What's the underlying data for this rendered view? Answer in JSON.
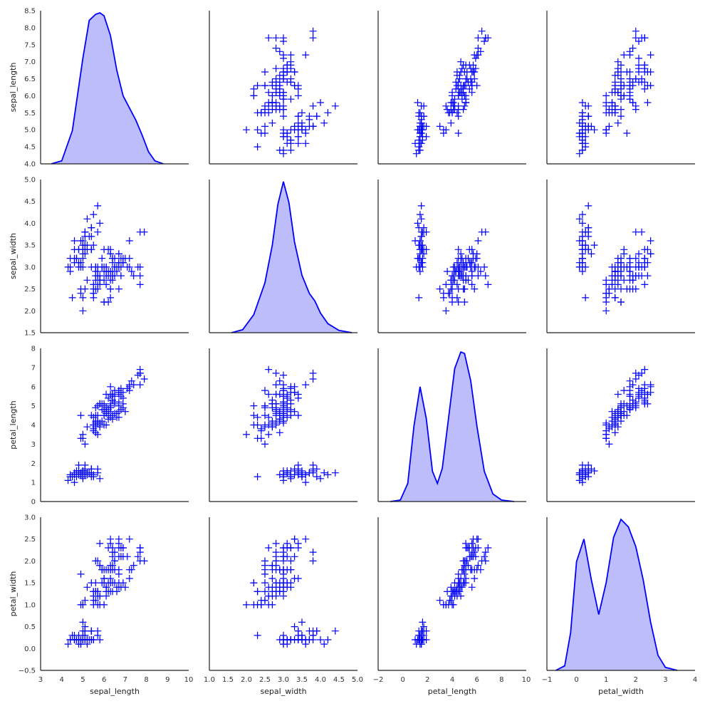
{
  "chart_data": {
    "type": "pairplot",
    "marker": "+",
    "color": "#0000ff",
    "fill_color": "#bdbdfb",
    "grid": false,
    "variables": [
      "sepal_length",
      "sepal_width",
      "petal_length",
      "petal_width"
    ],
    "axes": {
      "sepal_length": {
        "label": "sepal_length",
        "range": [
          4.0,
          8.5
        ],
        "ticks": [
          "4.0",
          "4.5",
          "5.0",
          "5.5",
          "6.0",
          "6.5",
          "7.0",
          "7.5",
          "8.0",
          "8.5"
        ],
        "xrange": [
          3,
          10
        ],
        "xticks": [
          "3",
          "4",
          "5",
          "6",
          "7",
          "8",
          "9",
          "10"
        ]
      },
      "sepal_width": {
        "label": "sepal_width",
        "range": [
          1.5,
          5.0
        ],
        "ticks": [
          "1.5",
          "2.0",
          "2.5",
          "3.0",
          "3.5",
          "4.0",
          "4.5",
          "5.0"
        ],
        "xrange": [
          1.0,
          5.0
        ],
        "xticks": [
          "1.0",
          "1.5",
          "2.0",
          "2.5",
          "3.0",
          "3.5",
          "4.0",
          "4.5",
          "5.0"
        ]
      },
      "petal_length": {
        "label": "petal_length",
        "range": [
          0,
          8
        ],
        "ticks": [
          "0",
          "1",
          "2",
          "3",
          "4",
          "5",
          "6",
          "7",
          "8"
        ],
        "xrange": [
          -2,
          10
        ],
        "xticks": [
          "−2",
          "0",
          "2",
          "4",
          "6",
          "8",
          "10"
        ]
      },
      "petal_width": {
        "label": "petal_width",
        "range": [
          -0.5,
          3.0
        ],
        "ticks": [
          "−0.5",
          "0.0",
          "0.5",
          "1.0",
          "1.5",
          "2.0",
          "2.5",
          "3.0"
        ],
        "xrange": [
          -1,
          4
        ],
        "xticks": [
          "−1",
          "0",
          "1",
          "2",
          "3",
          "4"
        ]
      }
    },
    "kde": {
      "sepal_length": {
        "x": [
          3.5,
          4.0,
          4.5,
          5.0,
          5.3,
          5.6,
          5.8,
          6.0,
          6.3,
          6.6,
          6.9,
          7.2,
          7.5,
          7.8,
          8.1,
          8.4,
          8.8
        ],
        "y": [
          0.0,
          0.02,
          0.22,
          0.7,
          0.95,
          0.99,
          1.0,
          0.98,
          0.85,
          0.62,
          0.45,
          0.37,
          0.29,
          0.19,
          0.08,
          0.02,
          0.0
        ]
      },
      "sepal_width": {
        "x": [
          1.6,
          1.9,
          2.2,
          2.5,
          2.7,
          2.85,
          3.0,
          3.15,
          3.3,
          3.5,
          3.7,
          3.85,
          4.0,
          4.2,
          4.5,
          4.85
        ],
        "y": [
          0.0,
          0.02,
          0.12,
          0.33,
          0.58,
          0.85,
          1.0,
          0.86,
          0.6,
          0.38,
          0.26,
          0.21,
          0.13,
          0.06,
          0.015,
          0.0
        ]
      },
      "petal_length": {
        "x": [
          -1.0,
          -0.2,
          0.4,
          0.9,
          1.4,
          1.9,
          2.4,
          2.8,
          3.2,
          3.7,
          4.2,
          4.7,
          5.0,
          5.5,
          6.0,
          6.6,
          7.3,
          8.0,
          9.0
        ],
        "y": [
          0.0,
          0.01,
          0.12,
          0.5,
          0.76,
          0.55,
          0.2,
          0.12,
          0.22,
          0.55,
          0.88,
          0.99,
          0.98,
          0.8,
          0.5,
          0.2,
          0.05,
          0.01,
          0.0
        ]
      },
      "petal_width": {
        "x": [
          -0.7,
          -0.4,
          -0.2,
          0.0,
          0.25,
          0.5,
          0.75,
          1.0,
          1.25,
          1.5,
          1.75,
          2.0,
          2.25,
          2.5,
          2.75,
          3.0,
          3.4
        ],
        "y": [
          0.0,
          0.03,
          0.25,
          0.72,
          0.87,
          0.6,
          0.37,
          0.58,
          0.88,
          1.0,
          0.95,
          0.82,
          0.6,
          0.32,
          0.1,
          0.02,
          0.0
        ]
      }
    },
    "samples": {
      "sepal_length": [
        5.1,
        4.9,
        4.7,
        4.6,
        5.0,
        5.4,
        4.6,
        5.0,
        4.4,
        4.9,
        5.4,
        4.8,
        4.8,
        4.3,
        5.8,
        5.7,
        5.4,
        5.1,
        5.7,
        5.1,
        5.4,
        5.1,
        4.6,
        5.1,
        4.8,
        5.0,
        5.0,
        5.2,
        5.2,
        4.7,
        4.8,
        5.4,
        5.2,
        5.5,
        4.9,
        5.0,
        5.5,
        4.9,
        4.4,
        5.1,
        5.0,
        4.5,
        4.4,
        5.0,
        5.1,
        4.8,
        5.1,
        4.6,
        5.3,
        5.0,
        7.0,
        6.4,
        6.9,
        5.5,
        6.5,
        5.7,
        6.3,
        4.9,
        6.6,
        5.2,
        5.0,
        5.9,
        6.0,
        6.1,
        5.6,
        6.7,
        5.6,
        5.8,
        6.2,
        5.6,
        5.9,
        6.1,
        6.3,
        6.1,
        6.4,
        6.6,
        6.8,
        6.7,
        6.0,
        5.7,
        5.5,
        5.5,
        5.8,
        6.0,
        5.4,
        6.0,
        6.7,
        6.3,
        5.6,
        5.5,
        5.5,
        6.1,
        5.8,
        5.0,
        5.6,
        5.7,
        5.7,
        6.2,
        5.1,
        5.7,
        6.3,
        5.8,
        7.1,
        6.3,
        6.5,
        7.6,
        4.9,
        7.3,
        6.7,
        7.2,
        6.5,
        6.4,
        6.8,
        5.7,
        5.8,
        6.4,
        6.5,
        7.7,
        7.7,
        6.0,
        6.9,
        5.6,
        7.7,
        6.3,
        6.7,
        7.2,
        6.2,
        6.1,
        6.4,
        7.2,
        7.4,
        7.9,
        6.4,
        6.3,
        6.1,
        7.7,
        6.3,
        6.4,
        6.0,
        6.9,
        6.7,
        6.9,
        5.8,
        6.8,
        6.7,
        6.7,
        6.3,
        6.5,
        6.2,
        5.9
      ],
      "sepal_width": [
        3.5,
        3.0,
        3.2,
        3.1,
        3.6,
        3.9,
        3.4,
        3.4,
        2.9,
        3.1,
        3.7,
        3.4,
        3.0,
        3.0,
        4.0,
        4.4,
        3.9,
        3.5,
        3.8,
        3.8,
        3.4,
        3.7,
        3.6,
        3.3,
        3.4,
        3.0,
        3.4,
        3.5,
        3.4,
        3.2,
        3.1,
        3.4,
        4.1,
        4.2,
        3.1,
        3.2,
        3.5,
        3.6,
        3.0,
        3.4,
        3.5,
        2.3,
        3.2,
        3.5,
        3.8,
        3.0,
        3.8,
        3.2,
        3.7,
        3.3,
        3.2,
        3.2,
        3.1,
        2.3,
        2.8,
        2.8,
        3.3,
        2.4,
        2.9,
        2.7,
        2.0,
        3.0,
        2.2,
        2.9,
        2.9,
        3.1,
        3.0,
        2.7,
        2.2,
        2.5,
        3.2,
        2.8,
        2.5,
        2.8,
        2.9,
        3.0,
        2.8,
        3.0,
        2.9,
        2.6,
        2.4,
        2.4,
        2.7,
        2.7,
        3.0,
        3.4,
        3.1,
        2.3,
        3.0,
        2.5,
        2.6,
        3.0,
        2.6,
        2.3,
        2.7,
        3.0,
        2.9,
        2.9,
        2.5,
        2.8,
        3.3,
        2.7,
        3.0,
        2.9,
        3.0,
        3.0,
        2.5,
        2.9,
        2.5,
        3.6,
        3.2,
        2.7,
        3.0,
        2.5,
        2.8,
        3.2,
        3.0,
        3.8,
        2.6,
        2.2,
        3.2,
        2.8,
        2.8,
        2.7,
        3.3,
        3.2,
        2.8,
        3.0,
        2.8,
        3.0,
        2.8,
        3.8,
        2.8,
        2.8,
        2.6,
        3.0,
        3.4,
        3.1,
        3.0,
        3.1,
        3.1,
        3.1,
        2.7,
        3.2,
        3.3,
        3.0,
        2.5,
        3.0,
        3.4,
        3.0
      ],
      "petal_length": [
        1.4,
        1.4,
        1.3,
        1.5,
        1.4,
        1.7,
        1.4,
        1.5,
        1.4,
        1.5,
        1.5,
        1.6,
        1.4,
        1.1,
        1.2,
        1.5,
        1.3,
        1.4,
        1.7,
        1.5,
        1.7,
        1.5,
        1.0,
        1.7,
        1.9,
        1.6,
        1.6,
        1.5,
        1.4,
        1.6,
        1.6,
        1.5,
        1.5,
        1.4,
        1.5,
        1.2,
        1.3,
        1.4,
        1.3,
        1.5,
        1.3,
        1.3,
        1.3,
        1.6,
        1.9,
        1.4,
        1.6,
        1.4,
        1.5,
        1.4,
        4.7,
        4.5,
        4.9,
        4.0,
        4.6,
        4.5,
        4.7,
        3.3,
        4.6,
        3.9,
        3.5,
        4.2,
        4.0,
        4.7,
        3.6,
        4.4,
        4.5,
        4.1,
        4.5,
        3.9,
        4.8,
        4.0,
        4.9,
        4.7,
        4.3,
        4.4,
        4.8,
        5.0,
        4.5,
        3.5,
        3.8,
        3.7,
        3.9,
        5.1,
        4.5,
        4.5,
        4.7,
        4.4,
        4.1,
        4.0,
        4.4,
        4.6,
        4.0,
        3.3,
        4.2,
        4.2,
        4.2,
        4.3,
        3.0,
        4.1,
        6.0,
        5.1,
        5.9,
        5.6,
        5.8,
        6.6,
        4.5,
        6.3,
        5.8,
        6.1,
        5.1,
        5.3,
        5.5,
        5.0,
        5.1,
        5.3,
        5.5,
        6.7,
        6.9,
        5.0,
        5.7,
        4.9,
        6.7,
        4.9,
        5.7,
        6.0,
        4.8,
        4.9,
        5.6,
        5.8,
        6.1,
        6.4,
        5.6,
        5.1,
        5.6,
        6.1,
        5.6,
        5.5,
        4.8,
        5.4,
        5.6,
        5.1,
        5.1,
        5.9,
        5.7,
        5.2,
        5.0,
        5.2,
        5.4,
        5.1
      ],
      "petal_width": [
        0.2,
        0.2,
        0.2,
        0.2,
        0.2,
        0.4,
        0.3,
        0.2,
        0.2,
        0.1,
        0.2,
        0.2,
        0.1,
        0.1,
        0.2,
        0.4,
        0.4,
        0.3,
        0.3,
        0.3,
        0.2,
        0.4,
        0.2,
        0.5,
        0.2,
        0.2,
        0.4,
        0.2,
        0.2,
        0.2,
        0.2,
        0.4,
        0.1,
        0.2,
        0.2,
        0.2,
        0.2,
        0.1,
        0.2,
        0.2,
        0.3,
        0.3,
        0.2,
        0.6,
        0.4,
        0.3,
        0.2,
        0.2,
        0.2,
        0.2,
        1.4,
        1.5,
        1.5,
        1.3,
        1.5,
        1.3,
        1.6,
        1.0,
        1.3,
        1.4,
        1.0,
        1.5,
        1.0,
        1.4,
        1.3,
        1.4,
        1.5,
        1.0,
        1.5,
        1.1,
        1.8,
        1.3,
        1.5,
        1.2,
        1.3,
        1.4,
        1.4,
        1.7,
        1.5,
        1.0,
        1.1,
        1.0,
        1.2,
        1.6,
        1.5,
        1.6,
        1.5,
        1.3,
        1.3,
        1.3,
        1.2,
        1.4,
        1.2,
        1.0,
        1.3,
        1.2,
        1.3,
        1.3,
        1.1,
        1.3,
        2.5,
        1.9,
        2.1,
        1.8,
        2.2,
        2.1,
        1.7,
        1.8,
        1.8,
        2.5,
        2.0,
        1.9,
        2.1,
        2.0,
        2.4,
        2.3,
        1.8,
        2.2,
        2.3,
        1.5,
        2.3,
        2.0,
        2.0,
        1.8,
        2.1,
        1.8,
        1.8,
        1.8,
        2.1,
        1.6,
        1.9,
        2.0,
        2.2,
        1.5,
        1.4,
        2.3,
        2.4,
        1.8,
        1.8,
        2.1,
        2.4,
        2.3,
        1.9,
        2.3,
        2.5,
        2.3,
        1.9,
        2.0,
        2.3,
        1.8
      ]
    }
  }
}
